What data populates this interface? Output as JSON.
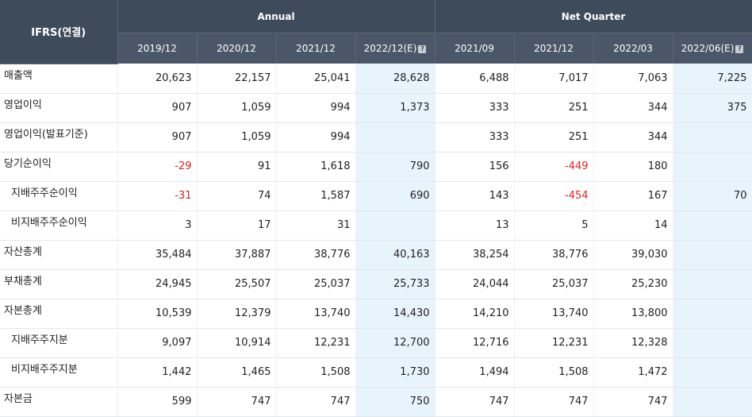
{
  "header": {
    "corner": "IFRS(연결)",
    "annual_label": "Annual",
    "quarter_label": "Net Quarter",
    "periods": [
      "2019/12",
      "2020/12",
      "2021/12",
      "2022/12(E)",
      "2021/09",
      "2021/12",
      "2022/03",
      "2022/06(E)"
    ],
    "help_icon": "question-icon"
  },
  "rows": [
    {
      "label": "매출액",
      "indent": false,
      "values": [
        "20,623",
        "22,157",
        "25,041",
        "28,628",
        "6,488",
        "7,017",
        "7,063",
        "7,225"
      ]
    },
    {
      "label": "영업이익",
      "indent": false,
      "values": [
        "907",
        "1,059",
        "994",
        "1,373",
        "333",
        "251",
        "344",
        "375"
      ]
    },
    {
      "label": "영업이익(발표기준)",
      "indent": false,
      "values": [
        "907",
        "1,059",
        "994",
        "",
        "333",
        "251",
        "344",
        ""
      ]
    },
    {
      "label": "당기순이익",
      "indent": false,
      "values": [
        "-29",
        "91",
        "1,618",
        "790",
        "156",
        "-449",
        "180",
        ""
      ]
    },
    {
      "label": "지배주주순이익",
      "indent": true,
      "values": [
        "-31",
        "74",
        "1,587",
        "690",
        "143",
        "-454",
        "167",
        "70"
      ]
    },
    {
      "label": "비지배주주순이익",
      "indent": true,
      "values": [
        "3",
        "17",
        "31",
        "",
        "13",
        "5",
        "14",
        ""
      ]
    },
    {
      "label": "자산총계",
      "indent": false,
      "values": [
        "35,484",
        "37,887",
        "38,776",
        "40,163",
        "38,254",
        "38,776",
        "39,030",
        ""
      ]
    },
    {
      "label": "부채총계",
      "indent": false,
      "values": [
        "24,945",
        "25,507",
        "25,037",
        "25,733",
        "24,044",
        "25,037",
        "25,230",
        ""
      ]
    },
    {
      "label": "자본총계",
      "indent": false,
      "values": [
        "10,539",
        "12,379",
        "13,740",
        "14,430",
        "14,210",
        "13,740",
        "13,800",
        ""
      ]
    },
    {
      "label": "지배주주지분",
      "indent": true,
      "values": [
        "9,097",
        "10,914",
        "12,231",
        "12,700",
        "12,716",
        "12,231",
        "12,328",
        ""
      ]
    },
    {
      "label": "비지배주주지분",
      "indent": true,
      "values": [
        "1,442",
        "1,465",
        "1,508",
        "1,730",
        "1,494",
        "1,508",
        "1,472",
        ""
      ]
    },
    {
      "label": "자본금",
      "indent": false,
      "values": [
        "599",
        "747",
        "747",
        "750",
        "747",
        "747",
        "747",
        ""
      ]
    }
  ],
  "colors": {
    "header_bg": "#3e4b5b",
    "estimate_bg": "#e8f4fb",
    "negative": "#e0221e"
  }
}
